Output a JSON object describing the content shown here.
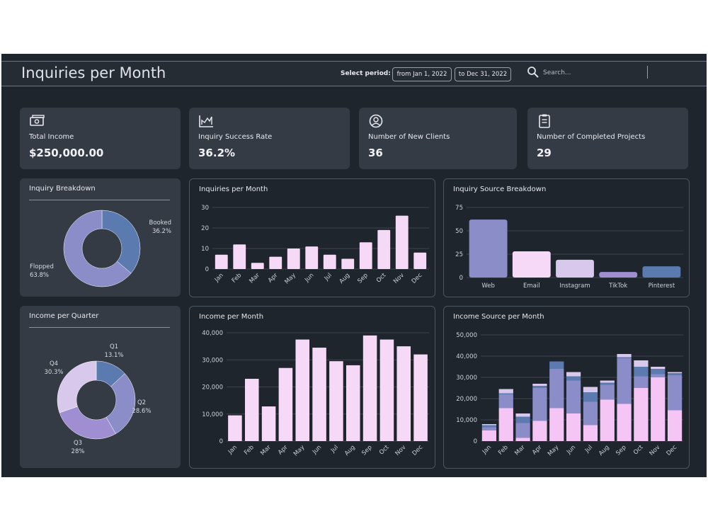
{
  "header": {
    "title": "Inquiries per Month",
    "period_label": "Select period:",
    "date_from": "from Jan 1, 2022",
    "date_to": "to Dec 31, 2022",
    "search_placeholder": "Search..."
  },
  "kpis": [
    {
      "label": "Total Income",
      "value": "$250,000.00",
      "icon": "money-icon"
    },
    {
      "label": "Inquiry Success Rate",
      "value": "36.2%",
      "icon": "chart-icon"
    },
    {
      "label": "Number of New Clients",
      "value": "36",
      "icon": "user-icon"
    },
    {
      "label": "Number of Completed Projects",
      "value": "29",
      "icon": "clipboard-icon"
    }
  ],
  "colors": {
    "bg": "#1f252c",
    "card": "#353b45",
    "pink": "#f5d9f6",
    "light_purple": "#d7c8ec",
    "periwinkle": "#8b8dc9",
    "blue": "#5b7ab0",
    "violet": "#a08ed3"
  },
  "chart_data": [
    {
      "id": "inquiry-breakdown",
      "type": "pie",
      "title": "Inquiry Breakdown",
      "slices": [
        {
          "label": "Booked",
          "value": 36.2,
          "display": "36.2%",
          "color": "#5b7ab0"
        },
        {
          "label": "Flopped",
          "value": 63.8,
          "display": "63.8%",
          "color": "#8b8dc9"
        }
      ]
    },
    {
      "id": "inquiries-per-month",
      "type": "bar",
      "title": "Inquiries per Month",
      "categories": [
        "Jan",
        "Feb",
        "Mar",
        "Apr",
        "May",
        "Jun",
        "Jul",
        "Aug",
        "Sep",
        "Oct",
        "Nov",
        "Dec"
      ],
      "values": [
        7,
        12,
        3,
        6,
        10,
        11,
        7,
        5,
        13,
        19,
        26,
        8
      ],
      "yticks": [
        0,
        10,
        20,
        30
      ],
      "ylim": [
        0,
        30
      ],
      "color": "#f5d9f6"
    },
    {
      "id": "inquiry-source-breakdown",
      "type": "bar",
      "title": "Inquiry Source Breakdown",
      "categories": [
        "Web",
        "Email",
        "Instagram",
        "TikTok",
        "Pinterest"
      ],
      "values": [
        62,
        28,
        19,
        6,
        12
      ],
      "colors": [
        "#8b8dc9",
        "#f5d9f6",
        "#d7c8ec",
        "#a08ed3",
        "#5b7ab0"
      ],
      "yticks": [
        0,
        25,
        50,
        75
      ],
      "ylim": [
        0,
        75
      ]
    },
    {
      "id": "income-per-quarter",
      "type": "pie",
      "title": "Income per Quarter",
      "slices": [
        {
          "label": "Q1",
          "value": 13.1,
          "display": "13.1%",
          "color": "#5b7ab0"
        },
        {
          "label": "Q2",
          "value": 28.6,
          "display": "28.6%",
          "color": "#8b8dc9"
        },
        {
          "label": "Q3",
          "value": 28,
          "display": "28%",
          "color": "#a08ed3"
        },
        {
          "label": "Q4",
          "value": 30.3,
          "display": "30.3%",
          "color": "#d7c8ec"
        }
      ]
    },
    {
      "id": "income-per-month",
      "type": "bar",
      "title": "Income per Month",
      "categories": [
        "Jan",
        "Feb",
        "Mar",
        "Apr",
        "May",
        "Jun",
        "Jul",
        "Aug",
        "Sep",
        "Oct",
        "Nov",
        "Dec"
      ],
      "values": [
        9500,
        23000,
        12800,
        27000,
        37500,
        34500,
        29500,
        28000,
        39000,
        37500,
        35000,
        32000
      ],
      "yticks": [
        0,
        10000,
        20000,
        30000,
        40000
      ],
      "ytick_labels": [
        "0",
        "10,000",
        "20,000",
        "30,000",
        "40,000"
      ],
      "ylim": [
        0,
        40000
      ],
      "color": "#f5d9f6"
    },
    {
      "id": "income-source-per-month",
      "type": "bar",
      "stacked": true,
      "title": "Income Source per Month",
      "categories": [
        "Jan",
        "Feb",
        "Mar",
        "Apr",
        "May",
        "Jun",
        "Jul",
        "Aug",
        "Sep",
        "Oct",
        "Nov",
        "Dec"
      ],
      "yticks": [
        0,
        10000,
        20000,
        30000,
        40000,
        50000
      ],
      "ytick_labels": [
        "0",
        "10,000",
        "20,000",
        "30,000",
        "40,000",
        "50,000"
      ],
      "ylim": [
        0,
        50000
      ],
      "series": [
        {
          "color": "#f5c6f5",
          "values": [
            5000,
            15500,
            1500,
            9500,
            15500,
            13000,
            7500,
            19500,
            17500,
            25000,
            30000,
            14500
          ]
        },
        {
          "color": "#8b8dc9",
          "values": [
            1500,
            6500,
            7000,
            15500,
            18500,
            15500,
            11000,
            7000,
            21500,
            5500,
            1500,
            16500
          ]
        },
        {
          "color": "#5b7ab0",
          "values": [
            1000,
            500,
            3000,
            1000,
            3500,
            2000,
            4500,
            1000,
            500,
            4500,
            2500,
            1000
          ]
        },
        {
          "color": "#d7c8ec",
          "values": [
            500,
            2000,
            1500,
            1000,
            0,
            2000,
            2500,
            1000,
            1500,
            3000,
            1000,
            500
          ]
        }
      ]
    }
  ]
}
